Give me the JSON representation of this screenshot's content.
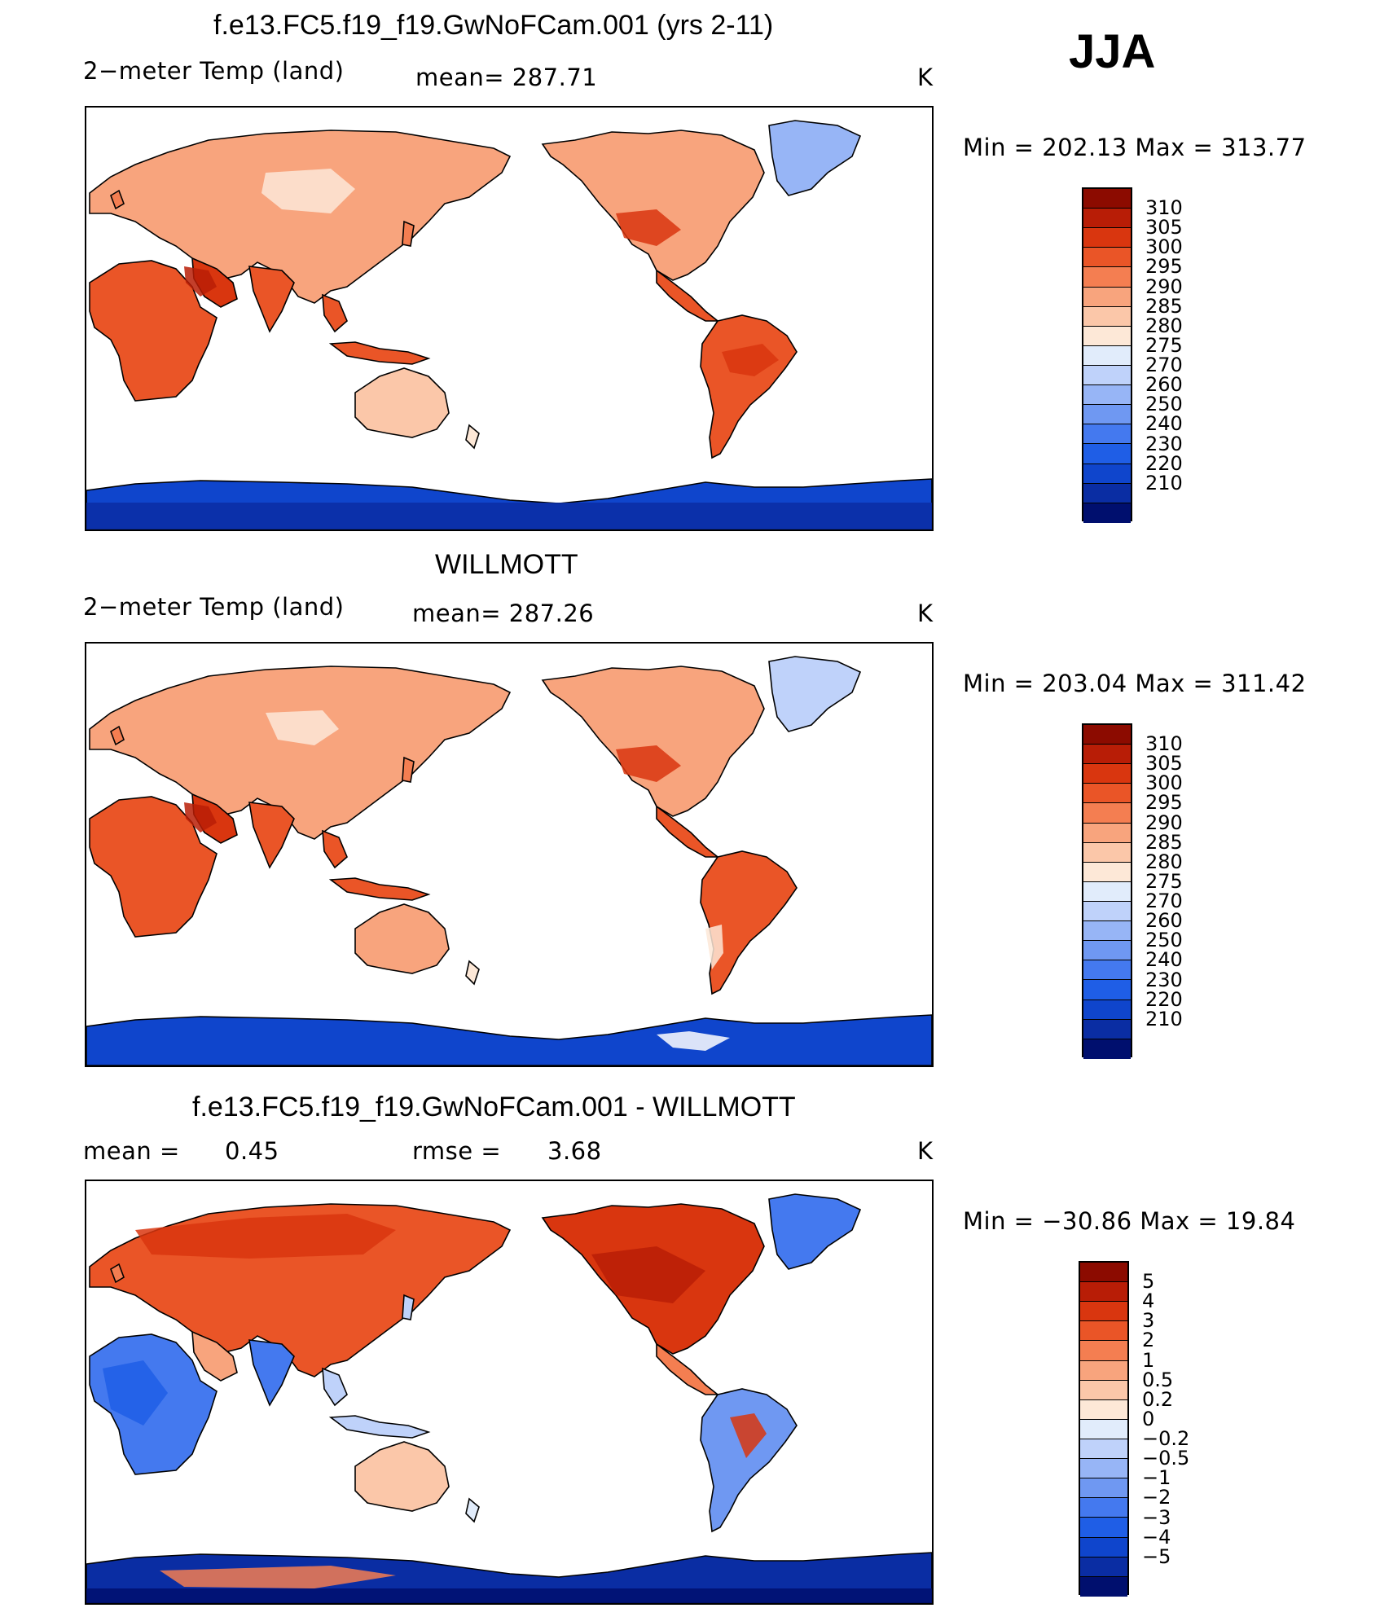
{
  "season": "JJA",
  "colors": {
    "abs_scale": [
      "#000f6e",
      "#0a2da3",
      "#0f45cc",
      "#1f5ee6",
      "#4479ef",
      "#6f98f2",
      "#97b5f6",
      "#bfd2fa",
      "#e1ecfb",
      "#fde8d7",
      "#fbc7a9",
      "#f8a47d",
      "#f47e51",
      "#ea5527",
      "#d9360f",
      "#b81d06",
      "#8c0b00"
    ],
    "diff_scale": [
      "#000f6e",
      "#0a2da3",
      "#0f45cc",
      "#1f5ee6",
      "#4479ef",
      "#6f98f2",
      "#97b5f6",
      "#bfd2fa",
      "#e1ecfb",
      "#fde8d7",
      "#fbc7a9",
      "#f8a47d",
      "#f47e51",
      "#ea5527",
      "#d9360f",
      "#b81d06",
      "#8c0b00"
    ]
  },
  "chart_data": [
    {
      "type": "heatmap",
      "title": "f.e13.FC5.f19_f19.GwNoFCam.001 (yrs 2-11)",
      "variable": "2−meter Temp (land)",
      "stat": "mean=  287.71",
      "units": "K",
      "minmax": "Min  =  202.13  Max  =  313.77",
      "colorbar_levels": [
        "310",
        "305",
        "300",
        "295",
        "290",
        "285",
        "280",
        "275",
        "270",
        "260",
        "250",
        "240",
        "230",
        "220",
        "210"
      ]
    },
    {
      "type": "heatmap",
      "title": "WILLMOTT",
      "variable": "2−meter Temp (land)",
      "stat": "mean=  287.26",
      "units": "K",
      "minmax": "Min  =  203.04  Max  =  311.42",
      "colorbar_levels": [
        "310",
        "305",
        "300",
        "295",
        "290",
        "285",
        "280",
        "275",
        "270",
        "260",
        "250",
        "240",
        "230",
        "220",
        "210"
      ]
    },
    {
      "type": "heatmap",
      "title": "f.e13.FC5.f19_f19.GwNoFCam.001 - WILLMOTT",
      "mean_label": "mean  =",
      "mean_value": "0.45",
      "rmse_label": "rmse  =",
      "rmse_value": "3.68",
      "units": "K",
      "minmax": "Min  =  −30.86  Max  =    19.84",
      "colorbar_levels": [
        "5",
        "4",
        "3",
        "2",
        "1",
        "0.5",
        "0.2",
        "0",
        "−0.2",
        "−0.5",
        "−1",
        "−2",
        "−3",
        "−4",
        "−5"
      ]
    }
  ]
}
